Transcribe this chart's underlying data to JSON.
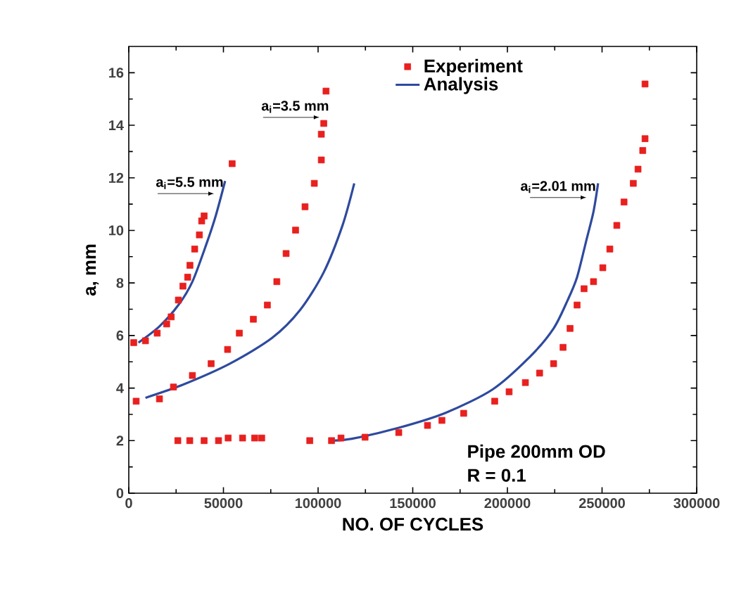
{
  "chart_data": {
    "type": "scatter",
    "xlabel": "NO. OF CYCLES",
    "ylabel": "a, mm",
    "xlim": [
      0,
      300000
    ],
    "ylim": [
      0,
      17
    ],
    "xticks": [
      0,
      50000,
      100000,
      150000,
      200000,
      250000,
      300000
    ],
    "yticks": [
      0,
      2,
      4,
      6,
      8,
      10,
      12,
      14,
      16
    ],
    "legend": "top right",
    "series": [
      {
        "name": "Experiment",
        "marker": "square",
        "color": "#e8201e",
        "x": [
          2600,
          8800,
          15000,
          20000,
          22400,
          26200,
          28600,
          31100,
          32300,
          34800,
          37300,
          38500,
          39800,
          54600,
          3900,
          16200,
          23600,
          33600,
          43500,
          52200,
          58400,
          65800,
          73200,
          78200,
          83100,
          88100,
          93100,
          98000,
          101700,
          101700,
          103000,
          104200,
          25900,
          32200,
          39800,
          47400,
          52500,
          60100,
          66500,
          70200,
          95600,
          107100,
          112100,
          124800,
          142600,
          157800,
          165400,
          176900,
          193300,
          200900,
          209500,
          217000,
          224400,
          229400,
          233100,
          236800,
          240500,
          245500,
          250400,
          254100,
          257800,
          261600,
          266500,
          269000,
          271500,
          272700,
          272700
        ],
        "values": [
          5.73,
          5.8,
          6.09,
          6.44,
          6.71,
          7.35,
          7.88,
          8.22,
          8.67,
          9.29,
          9.83,
          10.36,
          10.55,
          12.54,
          3.5,
          3.59,
          4.04,
          4.48,
          4.93,
          5.47,
          6.09,
          6.62,
          7.16,
          8.05,
          9.12,
          10.01,
          10.9,
          11.79,
          12.68,
          13.66,
          14.07,
          15.3,
          2.0,
          2.0,
          2.0,
          2.0,
          2.1,
          2.1,
          2.1,
          2.1,
          2.0,
          2.0,
          2.1,
          2.13,
          2.31,
          2.58,
          2.77,
          3.04,
          3.5,
          3.86,
          4.21,
          4.57,
          4.93,
          5.55,
          6.27,
          7.16,
          7.78,
          8.05,
          8.58,
          9.29,
          10.19,
          11.08,
          11.79,
          12.33,
          13.04,
          13.49,
          15.57
        ]
      },
      {
        "name": "Analysis",
        "type": "line",
        "marker": "none",
        "color": "#2e4a9e",
        "x": [
          5100,
          16200,
          26200,
          33600,
          41000,
          45900,
          50900
        ],
        "values": [
          5.73,
          6.35,
          7.16,
          8.05,
          9.48,
          10.55,
          11.88
        ]
      },
      {
        "type": "line",
        "marker": "none",
        "color": "#2e4a9e",
        "x": [
          8800,
          28600,
          53400,
          75700,
          90600,
          103000,
          112900,
          119100
        ],
        "values": [
          3.63,
          4.13,
          4.93,
          5.91,
          6.98,
          8.41,
          10.19,
          11.79
        ]
      },
      {
        "type": "line",
        "marker": "none",
        "color": "#2e4a9e",
        "x": [
          107100,
          117800,
          142600,
          167400,
          192200,
          212000,
          224400,
          231800,
          236800,
          241800,
          245500,
          247900
        ],
        "values": [
          2.0,
          2.07,
          2.49,
          3.06,
          3.95,
          5.2,
          6.27,
          7.34,
          8.22,
          9.65,
          10.72,
          11.79
        ]
      }
    ],
    "annotations": [
      {
        "text": "a$_{i}$=5.5 mm",
        "x": 45000,
        "y": 11.4
      },
      {
        "text": "a$_{i}$=3.5 mm",
        "x": 100700,
        "y": 14.3
      },
      {
        "text": "a$_{i}$=2.01 mm",
        "x": 241700,
        "y": 11.25
      },
      "Pipe 200mm OD",
      "R = 0.1"
    ]
  }
}
